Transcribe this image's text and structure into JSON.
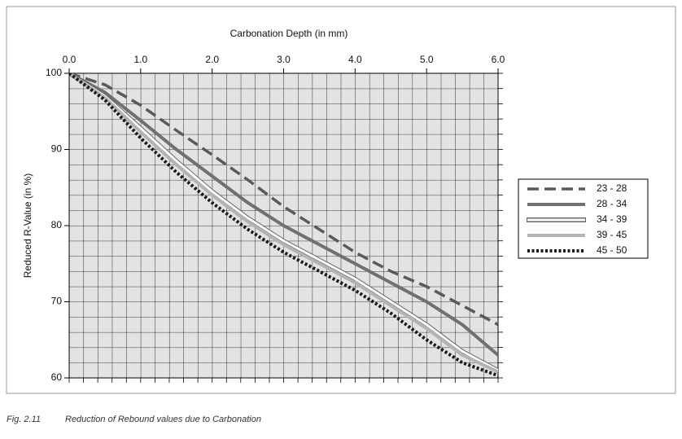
{
  "chart_data": {
    "type": "line",
    "title": "Carbonation Depth (in mm)",
    "y_label": "Reduced R-Value (in %)",
    "figure_number": "Fig. 2.11",
    "caption": "Reduction of Rebound values due to Carbonation",
    "x": [
      0,
      0.5,
      1,
      1.5,
      2,
      2.5,
      3,
      3.5,
      4,
      4.5,
      5,
      5.5,
      6
    ],
    "xlim": [
      0,
      6
    ],
    "ylim": [
      60,
      100
    ],
    "xticks": [
      {
        "value": 0,
        "label": "0.0"
      },
      {
        "value": 1,
        "label": "1.0"
      },
      {
        "value": 2,
        "label": "2.0"
      },
      {
        "value": 3,
        "label": "3.0"
      },
      {
        "value": 4,
        "label": "4.0"
      },
      {
        "value": 5,
        "label": "5.0"
      },
      {
        "value": 6,
        "label": "6.0"
      }
    ],
    "yticks": [
      60,
      70,
      80,
      90,
      100
    ],
    "x_axis_position": "top",
    "grid": true,
    "legend": "right",
    "series": [
      {
        "name": "23 - 28",
        "color": "#5a5a5a",
        "style": "dashed",
        "values": [
          100,
          98.5,
          95.8,
          92.5,
          89.3,
          86,
          82.5,
          79.5,
          76.5,
          74,
          72,
          69.5,
          67
        ]
      },
      {
        "name": "28 - 34",
        "color": "#707070",
        "style": "solid",
        "values": [
          100,
          97.5,
          93.8,
          90,
          86.5,
          83,
          80,
          77.5,
          75,
          72.5,
          70,
          67,
          63
        ]
      },
      {
        "name": "34 - 39",
        "color": "#ffffff",
        "style": "outlined",
        "values": [
          100,
          97,
          92.8,
          88.5,
          84.5,
          81,
          78,
          75.5,
          73,
          70,
          67,
          63.5,
          61
        ]
      },
      {
        "name": "39 - 45",
        "color": "#b4b4b4",
        "style": "solid",
        "values": [
          100,
          96.8,
          92.3,
          88,
          84,
          80.5,
          77.5,
          75,
          72.5,
          69.5,
          66.5,
          63,
          60.8
        ]
      },
      {
        "name": "45 - 50",
        "color": "#1a1a1a",
        "style": "dotted",
        "values": [
          100,
          96.5,
          91.5,
          87,
          83,
          79.5,
          76.5,
          74,
          71.5,
          68.5,
          65,
          62,
          60.3
        ]
      }
    ]
  }
}
